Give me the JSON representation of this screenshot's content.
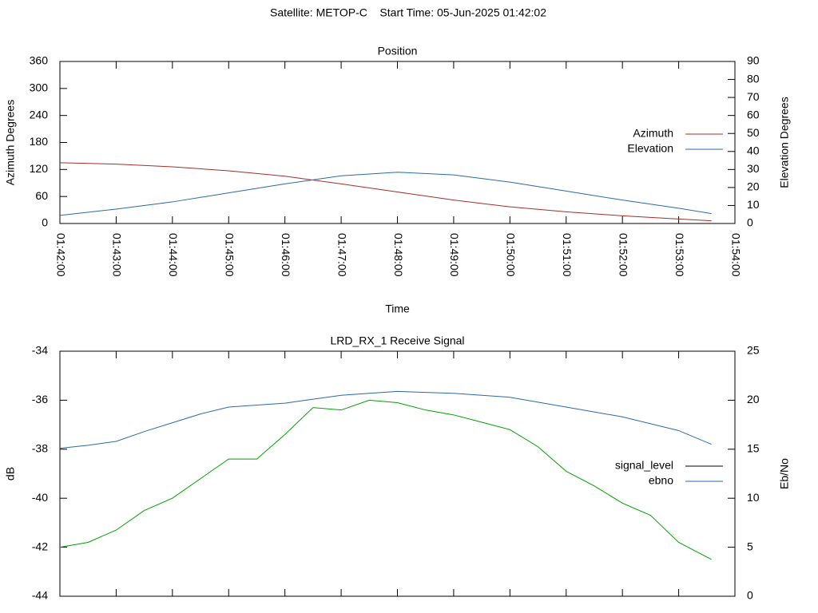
{
  "title": "Satellite: METOP-C    Start Time: 05-Jun-2025 01:42:02",
  "chart_data": [
    {
      "type": "line",
      "title": "Position",
      "x_label": "Time",
      "y_label": "Azimuth Degrees",
      "y2_label": "Elevation Degrees",
      "x": [
        "01:42:00",
        "01:43:00",
        "01:44:00",
        "01:45:00",
        "01:46:00",
        "01:47:00",
        "01:48:00",
        "01:49:00",
        "01:50:00",
        "01:51:00",
        "01:52:00",
        "01:53:00",
        "01:53:35"
      ],
      "series": [
        {
          "name": "Azimuth",
          "color": "#a0302a",
          "values": [
            135,
            132,
            126,
            117,
            105,
            88,
            70,
            52,
            37,
            26,
            17,
            10,
            6
          ]
        },
        {
          "name": "Elevation",
          "color": "#2a6aa8",
          "axis": "y2",
          "values": [
            4.5,
            8,
            12,
            17,
            22,
            26.5,
            28.5,
            27,
            23,
            18,
            13,
            8.5,
            5.5
          ]
        }
      ],
      "xlim": [
        "01:42:00",
        "01:54:00"
      ],
      "xticks": [
        "01:42:00",
        "01:43:00",
        "01:44:00",
        "01:45:00",
        "01:46:00",
        "01:47:00",
        "01:48:00",
        "01:49:00",
        "01:50:00",
        "01:51:00",
        "01:52:00",
        "01:53:00",
        "01:54:00"
      ],
      "ylim": [
        0,
        360
      ],
      "yticks": [
        0,
        60,
        120,
        180,
        240,
        300,
        360
      ],
      "y2lim": [
        0,
        90
      ],
      "y2ticks": [
        0,
        10,
        20,
        30,
        40,
        50,
        60,
        70,
        80,
        90
      ],
      "legend": "right"
    },
    {
      "type": "line",
      "title": "LRD_RX_1 Receive Signal",
      "y_label": "dB",
      "y2_label": "Eb/No",
      "x": [
        "01:42:00",
        "01:42:30",
        "01:43:00",
        "01:43:30",
        "01:44:00",
        "01:44:30",
        "01:45:00",
        "01:45:30",
        "01:46:00",
        "01:46:30",
        "01:47:00",
        "01:47:30",
        "01:48:00",
        "01:48:30",
        "01:49:00",
        "01:49:30",
        "01:50:00",
        "01:50:30",
        "01:51:00",
        "01:51:30",
        "01:52:00",
        "01:52:30",
        "01:53:00",
        "01:53:35"
      ],
      "series": [
        {
          "name": "signal_level",
          "color": "#00a000",
          "legend_color": "#000000",
          "values": [
            -42.0,
            -41.8,
            -41.3,
            -40.5,
            -40.0,
            -39.2,
            -38.4,
            -38.4,
            -37.4,
            -36.3,
            -36.4,
            -36.0,
            -36.1,
            -36.4,
            -36.6,
            -36.9,
            -37.2,
            -37.9,
            -38.9,
            -39.5,
            -40.2,
            -40.7,
            -41.8,
            -42.5
          ]
        },
        {
          "name": "ebno",
          "color": "#2a6aa8",
          "axis": "y2",
          "values": [
            15.1,
            15.4,
            15.8,
            16.8,
            17.7,
            18.6,
            19.3,
            19.5,
            19.7,
            20.1,
            20.5,
            20.7,
            20.9,
            20.8,
            20.7,
            20.5,
            20.3,
            19.8,
            19.3,
            18.8,
            18.3,
            17.6,
            16.9,
            15.5
          ]
        }
      ],
      "xlim": [
        "01:42:00",
        "01:54:00"
      ],
      "ylim": [
        -44,
        -34
      ],
      "yticks": [
        -44,
        -42,
        -40,
        -38,
        -36,
        -34
      ],
      "y2lim": [
        0,
        25
      ],
      "y2ticks": [
        0,
        5,
        10,
        15,
        20,
        25
      ],
      "legend": "right"
    }
  ]
}
